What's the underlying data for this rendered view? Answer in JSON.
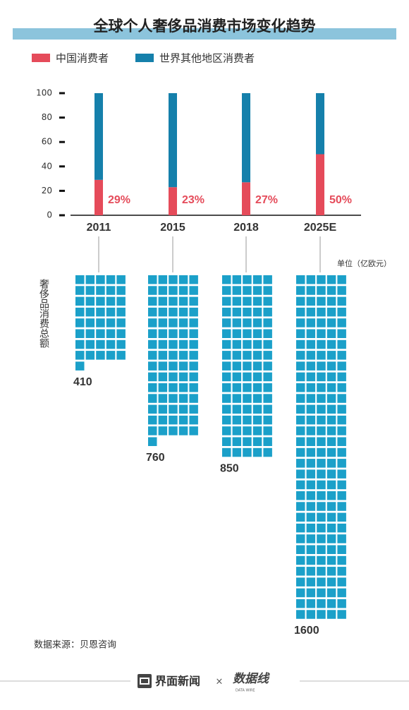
{
  "title": "全球个人奢侈品消费市场变化趋势",
  "source": "数据来源：贝恩咨询",
  "footer": {
    "brand": "界面新闻",
    "separator": "×",
    "partner": "数据线",
    "partner_sub": "DATA WIRE"
  },
  "chart_data": [
    {
      "type": "stacked-bar",
      "categories": [
        "2011",
        "2015",
        "2018",
        "2025E"
      ],
      "series": [
        {
          "name": "中国消费者",
          "color": "#e54b5a",
          "values": [
            29,
            23,
            27,
            50
          ],
          "value_labels": [
            "29%",
            "23%",
            "27%",
            "50%"
          ]
        },
        {
          "name": "世界其他地区消费者",
          "color": "#1580ab",
          "values": [
            71,
            77,
            73,
            50
          ]
        }
      ],
      "ylim": [
        0,
        100
      ],
      "yticks": [
        0,
        20,
        40,
        60,
        80,
        100
      ]
    },
    {
      "type": "waffle",
      "categories": [
        "2011",
        "2015",
        "2018",
        "2025E"
      ],
      "values": [
        410,
        760,
        850,
        1600
      ],
      "color": "#1ba0c9",
      "y_label": "奢侈品消费总额",
      "unit_label": "单位（亿欧元）"
    }
  ]
}
